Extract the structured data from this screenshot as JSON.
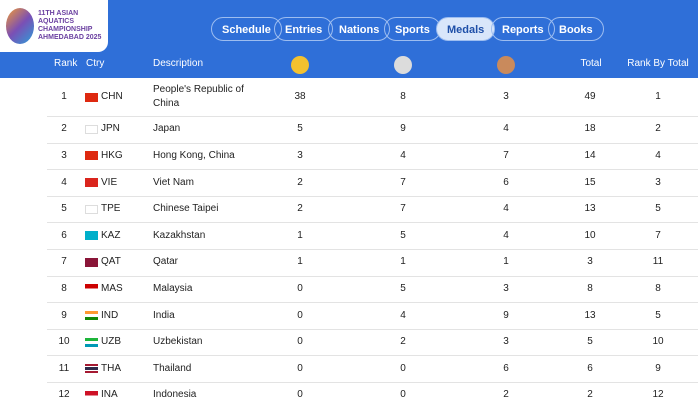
{
  "logo": {
    "lines": [
      "11TH ASIAN",
      "AQUATICS",
      "CHAMPIONSHIP",
      "AHMEDABAD 2025"
    ]
  },
  "nav": [
    "Schedule",
    "Entries",
    "Nations",
    "Sports",
    "Medals",
    "Reports",
    "Books"
  ],
  "active_nav": "Medals",
  "table": {
    "columns": [
      "Rank",
      "Ctry",
      "Description",
      "Total",
      "Rank By Total"
    ],
    "rows": [
      [
        1,
        "CHN",
        "People's Republic of China",
        38,
        8,
        3,
        49,
        1
      ],
      [
        2,
        "JPN",
        "Japan",
        5,
        9,
        4,
        18,
        2
      ],
      [
        3,
        "HKG",
        "Hong Kong, China",
        3,
        4,
        7,
        14,
        4
      ],
      [
        4,
        "VIE",
        "Viet Nam",
        2,
        7,
        6,
        15,
        3
      ],
      [
        5,
        "TPE",
        "Chinese Taipei",
        2,
        7,
        4,
        13,
        5
      ],
      [
        6,
        "KAZ",
        "Kazakhstan",
        1,
        5,
        4,
        10,
        7
      ],
      [
        7,
        "QAT",
        "Qatar",
        1,
        1,
        1,
        3,
        11
      ],
      [
        8,
        "MAS",
        "Malaysia",
        0,
        5,
        3,
        8,
        8
      ],
      [
        9,
        "IND",
        "India",
        0,
        4,
        9,
        13,
        5
      ],
      [
        10,
        "UZB",
        "Uzbekistan",
        0,
        2,
        3,
        5,
        10
      ],
      [
        11,
        "THA",
        "Thailand",
        0,
        0,
        6,
        6,
        9
      ],
      [
        12,
        "INA",
        "Indonesia",
        0,
        0,
        2,
        2,
        12
      ]
    ]
  }
}
